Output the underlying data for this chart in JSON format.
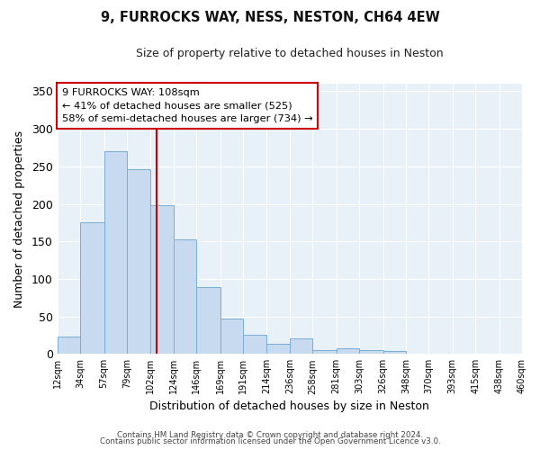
{
  "title": "9, FURROCKS WAY, NESS, NESTON, CH64 4EW",
  "subtitle": "Size of property relative to detached houses in Neston",
  "xlabel": "Distribution of detached houses by size in Neston",
  "ylabel": "Number of detached properties",
  "bin_edges": [
    12,
    34,
    57,
    79,
    102,
    124,
    146,
    169,
    191,
    214,
    236,
    258,
    281,
    303,
    326,
    348,
    370,
    393,
    415,
    438,
    460
  ],
  "bar_heights": [
    23,
    175,
    270,
    246,
    198,
    153,
    89,
    47,
    25,
    14,
    21,
    5,
    8,
    5,
    4,
    0,
    0,
    0,
    0,
    0
  ],
  "bar_color": "#c8daf0",
  "bar_edgecolor": "#7aadd4",
  "property_line_x": 108,
  "property_line_color": "#cc0000",
  "ylim": [
    0,
    360
  ],
  "yticks": [
    0,
    50,
    100,
    150,
    200,
    250,
    300,
    350
  ],
  "annotation_title": "9 FURROCKS WAY: 108sqm",
  "annotation_line1": "← 41% of detached houses are smaller (525)",
  "annotation_line2": "58% of semi-detached houses are larger (734) →",
  "annotation_box_color": "#ffffff",
  "annotation_box_edgecolor": "#cc0000",
  "footer1": "Contains HM Land Registry data © Crown copyright and database right 2024.",
  "footer2": "Contains public sector information licensed under the Open Government Licence v3.0.",
  "tick_labels": [
    "12sqm",
    "34sqm",
    "57sqm",
    "79sqm",
    "102sqm",
    "124sqm",
    "146sqm",
    "169sqm",
    "191sqm",
    "214sqm",
    "236sqm",
    "258sqm",
    "281sqm",
    "303sqm",
    "326sqm",
    "348sqm",
    "370sqm",
    "393sqm",
    "415sqm",
    "438sqm",
    "460sqm"
  ],
  "plot_bg_color": "#e8f0f8",
  "fig_bg_color": "#ffffff",
  "grid_color": "#ffffff"
}
